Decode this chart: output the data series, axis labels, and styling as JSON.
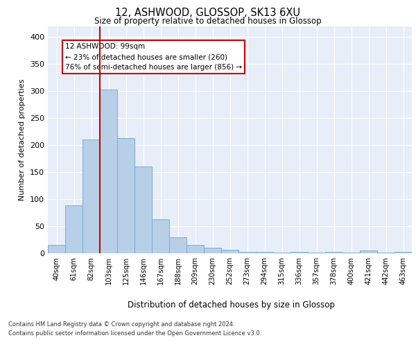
{
  "title_line1": "12, ASHWOOD, GLOSSOP, SK13 6XU",
  "title_line2": "Size of property relative to detached houses in Glossop",
  "xlabel": "Distribution of detached houses by size in Glossop",
  "ylabel": "Number of detached properties",
  "categories": [
    "40sqm",
    "61sqm",
    "82sqm",
    "103sqm",
    "125sqm",
    "146sqm",
    "167sqm",
    "188sqm",
    "209sqm",
    "230sqm",
    "252sqm",
    "273sqm",
    "294sqm",
    "315sqm",
    "336sqm",
    "357sqm",
    "378sqm",
    "400sqm",
    "421sqm",
    "442sqm",
    "463sqm"
  ],
  "values": [
    15,
    88,
    210,
    303,
    213,
    160,
    63,
    30,
    16,
    10,
    6,
    3,
    2,
    1,
    3,
    1,
    3,
    1,
    5,
    1,
    3
  ],
  "bar_color": "#b8cfe8",
  "bar_edge_color": "#7aaad0",
  "bg_color": "#e8eef8",
  "grid_color": "#ffffff",
  "vline_color": "#cc0000",
  "annotation_text": "12 ASHWOOD: 99sqm\n← 23% of detached houses are smaller (260)\n76% of semi-detached houses are larger (856) →",
  "annotation_box_color": "#ffffff",
  "annotation_box_edge_color": "#cc0000",
  "footer_line1": "Contains HM Land Registry data © Crown copyright and database right 2024.",
  "footer_line2": "Contains public sector information licensed under the Open Government Licence v3.0.",
  "ylim": [
    0,
    420
  ],
  "yticks": [
    0,
    50,
    100,
    150,
    200,
    250,
    300,
    350,
    400
  ]
}
